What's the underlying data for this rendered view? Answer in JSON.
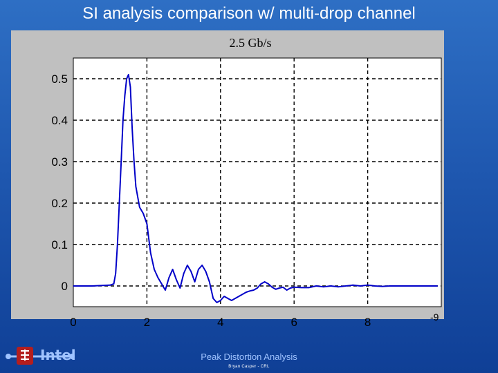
{
  "slide": {
    "title": "SI analysis comparison w/ multi-drop channel",
    "footer_title": "Peak Distortion Analysis",
    "footer_author": "Bryan Casper - CRL",
    "logo_text": "Intel"
  },
  "colors": {
    "background": "#1f58b0",
    "panel": "#c0c0c0",
    "plot_bg": "#ffffff",
    "line": "#0000c8",
    "grid": "#000000"
  },
  "chart_data": {
    "type": "line",
    "title": "2.5 Gb/s",
    "xlabel": "",
    "ylabel": "",
    "x_exponent_label": "-9",
    "xlim": [
      0,
      10
    ],
    "ylim": [
      -0.05,
      0.55
    ],
    "xticks": [
      0,
      2,
      4,
      6,
      8
    ],
    "yticks": [
      0,
      0.1,
      0.2,
      0.3,
      0.4,
      0.5
    ],
    "xtick_labels": [
      "0",
      "2",
      "4",
      "6",
      "8"
    ],
    "ytick_labels": [
      "0",
      "0.1",
      "0.2",
      "0.3",
      "0.4",
      "0.5"
    ],
    "grid": true,
    "series": [
      {
        "x": [
          0,
          0.5,
          1.0,
          1.1,
          1.15,
          1.2,
          1.25,
          1.3,
          1.35,
          1.4,
          1.45,
          1.5,
          1.55,
          1.6,
          1.65,
          1.7,
          1.8,
          1.9,
          2.0,
          2.1,
          2.2,
          2.3,
          2.4,
          2.5,
          2.6,
          2.7,
          2.8,
          2.9,
          3.0,
          3.1,
          3.2,
          3.3,
          3.4,
          3.5,
          3.6,
          3.7,
          3.8,
          3.9,
          4.0,
          4.1,
          4.2,
          4.3,
          4.4,
          4.5,
          4.6,
          4.7,
          4.8,
          4.9,
          5.0,
          5.1,
          5.2,
          5.3,
          5.4,
          5.5,
          5.6,
          5.7,
          5.8,
          5.9,
          6.0,
          6.2,
          6.4,
          6.6,
          6.8,
          7.0,
          7.2,
          7.4,
          7.6,
          7.8,
          8.0,
          8.2,
          8.4,
          8.6,
          8.8,
          9.0,
          9.2,
          9.4,
          9.6,
          9.8,
          9.9
        ],
        "y": [
          0,
          0,
          0.002,
          0.005,
          0.03,
          0.1,
          0.2,
          0.3,
          0.4,
          0.46,
          0.5,
          0.51,
          0.48,
          0.38,
          0.3,
          0.24,
          0.19,
          0.175,
          0.15,
          0.08,
          0.04,
          0.02,
          0.005,
          -0.01,
          0.02,
          0.04,
          0.015,
          -0.005,
          0.03,
          0.05,
          0.035,
          0.01,
          0.04,
          0.05,
          0.035,
          0.01,
          -0.03,
          -0.04,
          -0.035,
          -0.025,
          -0.03,
          -0.035,
          -0.03,
          -0.025,
          -0.02,
          -0.015,
          -0.012,
          -0.01,
          -0.005,
          0.005,
          0.01,
          0.005,
          -0.003,
          -0.008,
          -0.005,
          -0.003,
          -0.01,
          -0.005,
          -0.003,
          -0.004,
          -0.004,
          0,
          -0.002,
          0,
          -0.002,
          0,
          0.002,
          0,
          0.002,
          0,
          -0.001,
          0,
          0,
          0,
          0,
          0,
          0,
          0,
          0
        ]
      }
    ]
  }
}
